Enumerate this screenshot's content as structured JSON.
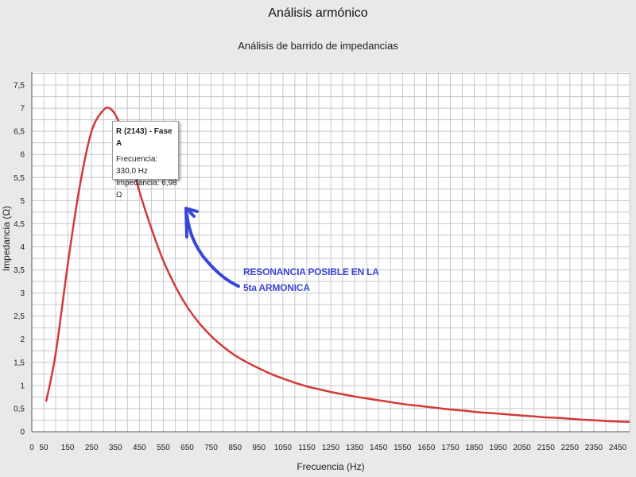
{
  "chart_data": {
    "type": "line",
    "title": "Análisis armónico",
    "subtitle": "Análisis de barrido de impedancias",
    "xlabel": "Frecuencia (Hz)",
    "ylabel": "Impedancia (Ω)",
    "xlim": [
      0,
      2500
    ],
    "ylim": [
      0,
      7.5
    ],
    "grid": true,
    "x_tick_labels": [
      "0",
      "50",
      "150",
      "250",
      "350",
      "450",
      "550",
      "650",
      "750",
      "850",
      "950",
      "1050",
      "1150",
      "1250",
      "1350",
      "1450",
      "1550",
      "1650",
      "1750",
      "1850",
      "1950",
      "2050",
      "2150",
      "2250",
      "2350",
      "2450"
    ],
    "y_tick_labels": [
      "0",
      "0,5",
      "1",
      "1,5",
      "2",
      "2,5",
      "3",
      "3,5",
      "4",
      "4,5",
      "5",
      "5,5",
      "6",
      "6,5",
      "7",
      "7,5"
    ],
    "series": [
      {
        "color": "#d23a3a",
        "points": [
          [
            60,
            0.65
          ],
          [
            100,
            1.7
          ],
          [
            150,
            3.6
          ],
          [
            200,
            5.3
          ],
          [
            250,
            6.5
          ],
          [
            300,
            6.96
          ],
          [
            330,
            6.98
          ],
          [
            360,
            6.75
          ],
          [
            400,
            6.15
          ],
          [
            450,
            5.2
          ],
          [
            500,
            4.4
          ],
          [
            550,
            3.7
          ],
          [
            600,
            3.15
          ],
          [
            650,
            2.7
          ],
          [
            700,
            2.35
          ],
          [
            750,
            2.07
          ],
          [
            800,
            1.84
          ],
          [
            850,
            1.65
          ],
          [
            900,
            1.5
          ],
          [
            950,
            1.37
          ],
          [
            1000,
            1.25
          ],
          [
            1050,
            1.15
          ],
          [
            1100,
            1.06
          ],
          [
            1150,
            0.98
          ],
          [
            1200,
            0.92
          ],
          [
            1250,
            0.86
          ],
          [
            1300,
            0.81
          ],
          [
            1350,
            0.76
          ],
          [
            1400,
            0.72
          ],
          [
            1450,
            0.68
          ],
          [
            1500,
            0.64
          ],
          [
            1550,
            0.6
          ],
          [
            1600,
            0.57
          ],
          [
            1650,
            0.54
          ],
          [
            1700,
            0.51
          ],
          [
            1750,
            0.48
          ],
          [
            1800,
            0.46
          ],
          [
            1850,
            0.43
          ],
          [
            1900,
            0.41
          ],
          [
            1950,
            0.39
          ],
          [
            2000,
            0.37
          ],
          [
            2050,
            0.35
          ],
          [
            2100,
            0.33
          ],
          [
            2150,
            0.31
          ],
          [
            2200,
            0.3
          ],
          [
            2250,
            0.28
          ],
          [
            2300,
            0.26
          ],
          [
            2350,
            0.25
          ],
          [
            2400,
            0.23
          ],
          [
            2450,
            0.22
          ],
          [
            2500,
            0.21
          ]
        ]
      }
    ]
  },
  "tooltip": {
    "title": "R (2143) - Fase A",
    "frequency": "Frecuencia: 330,0 Hz",
    "impedance": "Impedancia: 6,98 Ω"
  },
  "annotation": {
    "line1": "RESONANCIA POSIBLE EN LA",
    "line2": "5ta ARMONICA",
    "color": "#3a47d6"
  }
}
